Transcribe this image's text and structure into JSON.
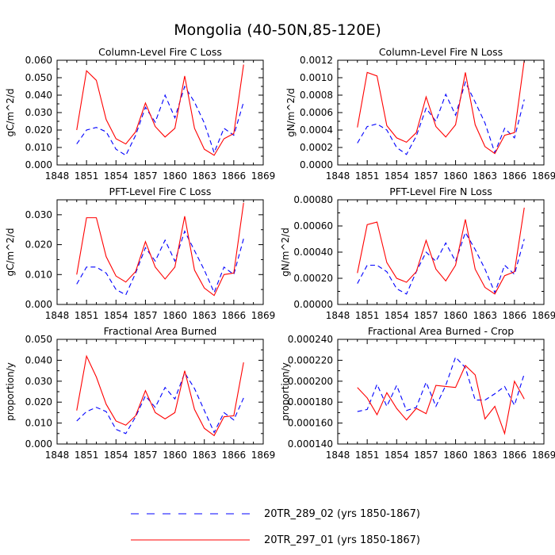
{
  "figure": {
    "title": "Mongolia (40-50N,85-120E)"
  },
  "legend": [
    {
      "label": "20TR_289_02 (yrs 1850-1867)",
      "color": "#0000ff",
      "dash": "dashed"
    },
    {
      "label": "20TR_297_01 (yrs 1850-1867)",
      "color": "#ff0000",
      "dash": "solid"
    }
  ],
  "chart_data": [
    {
      "type": "line",
      "title": "Column-Level Fire C Loss",
      "ylabel": "gC/m^2/d",
      "xlim": [
        1848,
        1869
      ],
      "ylim": [
        0,
        0.06
      ],
      "xticks": [
        1848,
        1851,
        1854,
        1857,
        1860,
        1863,
        1866,
        1869
      ],
      "yticks": [
        "0.000",
        "0.010",
        "0.020",
        "0.030",
        "0.040",
        "0.050",
        "0.060"
      ],
      "x": [
        1850,
        1851,
        1852,
        1853,
        1854,
        1855,
        1856,
        1857,
        1858,
        1859,
        1860,
        1861,
        1862,
        1863,
        1864,
        1865,
        1866,
        1867
      ],
      "series": [
        {
          "name": "20TR_289_02 (yrs 1850-1867)",
          "values": [
            0.012,
            0.02,
            0.0215,
            0.019,
            0.009,
            0.0055,
            0.017,
            0.033,
            0.0245,
            0.04,
            0.027,
            0.045,
            0.036,
            0.024,
            0.007,
            0.021,
            0.017,
            0.036
          ]
        },
        {
          "name": "20TR_297_01 (yrs 1850-1867)",
          "values": [
            0.02,
            0.054,
            0.0485,
            0.026,
            0.015,
            0.012,
            0.019,
            0.0355,
            0.022,
            0.016,
            0.021,
            0.051,
            0.021,
            0.009,
            0.0055,
            0.015,
            0.018,
            0.0575
          ]
        }
      ]
    },
    {
      "type": "line",
      "title": "Column-Level Fire N Loss",
      "ylabel": "gN/m^2/d",
      "xlim": [
        1848,
        1869
      ],
      "ylim": [
        0,
        0.0012
      ],
      "xticks": [
        1848,
        1851,
        1854,
        1857,
        1860,
        1863,
        1866,
        1869
      ],
      "yticks": [
        "0.0000",
        "0.0002",
        "0.0004",
        "0.0006",
        "0.0008",
        "0.0010",
        "0.0012"
      ],
      "x": [
        1850,
        1851,
        1852,
        1853,
        1854,
        1855,
        1856,
        1857,
        1858,
        1859,
        1860,
        1861,
        1862,
        1863,
        1864,
        1865,
        1866,
        1867
      ],
      "series": [
        {
          "name": "20TR_289_02 (yrs 1850-1867)",
          "values": [
            0.00025,
            0.00044,
            0.00047,
            0.0004,
            0.0002,
            0.00012,
            0.00033,
            0.00065,
            0.0005,
            0.00081,
            0.00057,
            0.00095,
            0.00072,
            0.00048,
            0.00014,
            0.00042,
            0.00031,
            0.00075
          ]
        },
        {
          "name": "20TR_297_01 (yrs 1850-1867)",
          "values": [
            0.00043,
            0.00106,
            0.00102,
            0.00045,
            0.00031,
            0.00026,
            0.00037,
            0.00078,
            0.00044,
            0.00032,
            0.00046,
            0.00106,
            0.00046,
            0.00021,
            0.00013,
            0.00034,
            0.00037,
            0.0012
          ]
        }
      ]
    },
    {
      "type": "line",
      "title": "PFT-Level Fire C Loss",
      "ylabel": "gC/m^2/d",
      "xlim": [
        1848,
        1869
      ],
      "ylim": [
        0,
        0.035
      ],
      "xticks": [
        1848,
        1851,
        1854,
        1857,
        1860,
        1863,
        1866,
        1869
      ],
      "yticks": [
        "0.000",
        "0.010",
        "0.020",
        "0.030"
      ],
      "x": [
        1850,
        1851,
        1852,
        1853,
        1854,
        1855,
        1856,
        1857,
        1858,
        1859,
        1860,
        1861,
        1862,
        1863,
        1864,
        1865,
        1866,
        1867
      ],
      "series": [
        {
          "name": "20TR_289_02 (yrs 1850-1867)",
          "values": [
            0.0068,
            0.0125,
            0.0125,
            0.0105,
            0.005,
            0.0032,
            0.0105,
            0.019,
            0.0145,
            0.0215,
            0.0145,
            0.0245,
            0.018,
            0.0115,
            0.004,
            0.0125,
            0.01,
            0.022
          ]
        },
        {
          "name": "20TR_297_01 (yrs 1850-1867)",
          "values": [
            0.01,
            0.029,
            0.029,
            0.016,
            0.0095,
            0.0075,
            0.011,
            0.021,
            0.0125,
            0.0085,
            0.0125,
            0.0295,
            0.0115,
            0.0055,
            0.003,
            0.01,
            0.0105,
            0.034
          ]
        }
      ]
    },
    {
      "type": "line",
      "title": "PFT-Level Fire N Loss",
      "ylabel": "gN/m^2/d",
      "xlim": [
        1848,
        1869
      ],
      "ylim": [
        0,
        0.0008
      ],
      "xticks": [
        1848,
        1851,
        1854,
        1857,
        1860,
        1863,
        1866,
        1869
      ],
      "yticks": [
        "0.00000",
        "0.00020",
        "0.00040",
        "0.00060",
        "0.00080"
      ],
      "x": [
        1850,
        1851,
        1852,
        1853,
        1854,
        1855,
        1856,
        1857,
        1858,
        1859,
        1860,
        1861,
        1862,
        1863,
        1864,
        1865,
        1866,
        1867
      ],
      "series": [
        {
          "name": "20TR_289_02 (yrs 1850-1867)",
          "values": [
            0.00016,
            0.0003,
            0.0003,
            0.00025,
            0.00012,
            8e-05,
            0.00025,
            0.0004,
            0.00033,
            0.00047,
            0.00033,
            0.00055,
            0.00042,
            0.00027,
            9e-05,
            0.0003,
            0.00023,
            0.0005
          ]
        },
        {
          "name": "20TR_297_01 (yrs 1850-1867)",
          "values": [
            0.00024,
            0.00061,
            0.00063,
            0.00032,
            0.0002,
            0.00017,
            0.00025,
            0.00049,
            0.00027,
            0.00018,
            0.0003,
            0.00065,
            0.00027,
            0.00013,
            8e-05,
            0.00022,
            0.00025,
            0.00074
          ]
        }
      ]
    },
    {
      "type": "line",
      "title": "Fractional Area Burned",
      "ylabel": "proportion/y",
      "xlim": [
        1848,
        1869
      ],
      "ylim": [
        0,
        0.05
      ],
      "xticks": [
        1848,
        1851,
        1854,
        1857,
        1860,
        1863,
        1866,
        1869
      ],
      "yticks": [
        "0.000",
        "0.010",
        "0.020",
        "0.030",
        "0.040",
        "0.050"
      ],
      "x": [
        1850,
        1851,
        1852,
        1853,
        1854,
        1855,
        1856,
        1857,
        1858,
        1859,
        1860,
        1861,
        1862,
        1863,
        1864,
        1865,
        1866,
        1867
      ],
      "series": [
        {
          "name": "20TR_289_02 (yrs 1850-1867)",
          "values": [
            0.011,
            0.0155,
            0.0175,
            0.0155,
            0.007,
            0.005,
            0.013,
            0.023,
            0.0175,
            0.027,
            0.0215,
            0.034,
            0.0265,
            0.016,
            0.0055,
            0.015,
            0.0115,
            0.022
          ]
        },
        {
          "name": "20TR_297_01 (yrs 1850-1867)",
          "values": [
            0.016,
            0.042,
            0.032,
            0.019,
            0.011,
            0.009,
            0.0135,
            0.0255,
            0.015,
            0.012,
            0.015,
            0.035,
            0.0165,
            0.0075,
            0.004,
            0.013,
            0.0135,
            0.039
          ]
        }
      ]
    },
    {
      "type": "line",
      "title": "Fractional Area Burned - Crop",
      "ylabel": "proportion/y",
      "xlim": [
        1848,
        1869
      ],
      "ylim": [
        0.00014,
        0.00024
      ],
      "xticks": [
        1848,
        1851,
        1854,
        1857,
        1860,
        1863,
        1866,
        1869
      ],
      "yticks": [
        "0.000140",
        "0.000160",
        "0.000180",
        "0.000200",
        "0.000220",
        "0.000240"
      ],
      "x": [
        1850,
        1851,
        1852,
        1853,
        1854,
        1855,
        1856,
        1857,
        1858,
        1859,
        1860,
        1861,
        1862,
        1863,
        1864,
        1865,
        1866,
        1867
      ],
      "series": [
        {
          "name": "20TR_289_02 (yrs 1850-1867)",
          "values": [
            0.000171,
            0.000173,
            0.000197,
            0.000176,
            0.000196,
            0.000172,
            0.000175,
            0.000199,
            0.000176,
            0.000196,
            0.000223,
            0.000213,
            0.000182,
            0.000182,
            0.000188,
            0.000195,
            0.000177,
            0.000207
          ]
        },
        {
          "name": "20TR_297_01 (yrs 1850-1867)",
          "values": [
            0.000194,
            0.000184,
            0.000168,
            0.000189,
            0.000174,
            0.000163,
            0.000174,
            0.000169,
            0.000196,
            0.000195,
            0.000194,
            0.000215,
            0.000206,
            0.000164,
            0.000176,
            0.00015,
            0.0002,
            0.000183
          ]
        }
      ]
    }
  ]
}
